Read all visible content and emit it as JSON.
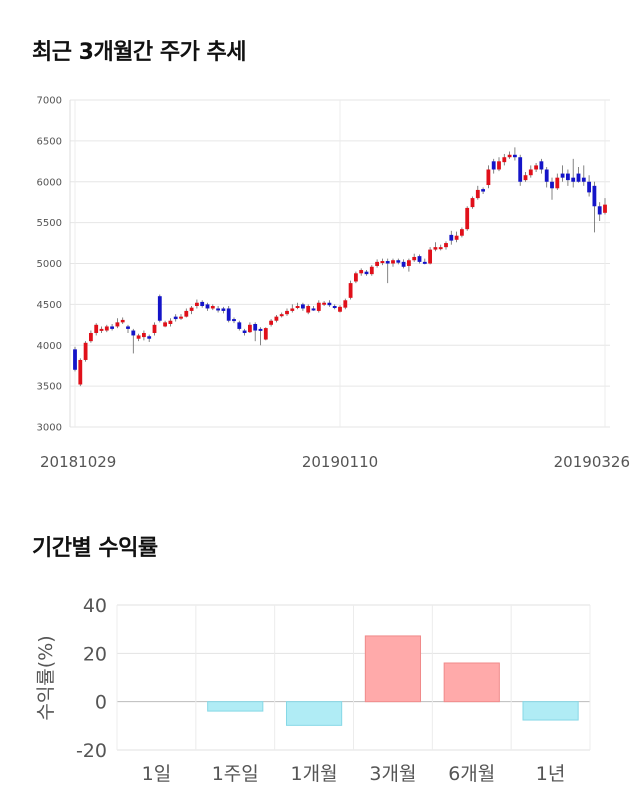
{
  "section1": {
    "title": "최근 3개월간 주가 추세"
  },
  "section2": {
    "title": "기간별 수익률"
  },
  "chart_data": [
    {
      "type": "candlestick",
      "title": "최근 3개월간 주가 추세",
      "ylim": [
        3000,
        7000
      ],
      "yticks": [
        "3000",
        "3500",
        "4000",
        "4500",
        "5000",
        "5500",
        "6000",
        "6500",
        "7000"
      ],
      "x_tick_labels": [
        {
          "label": "20181029",
          "index": 0
        },
        {
          "label": "20190110",
          "index": 50
        },
        {
          "label": "20190326",
          "index": 100
        }
      ],
      "colors": {
        "up": "#e0101a",
        "down": "#1414c8"
      },
      "grid": true,
      "candles": [
        [
          3950,
          3700,
          3980,
          3680
        ],
        [
          3520,
          3820,
          3840,
          3500
        ],
        [
          3820,
          4030,
          4050,
          3800
        ],
        [
          4050,
          4150,
          4180,
          4030
        ],
        [
          4150,
          4250,
          4270,
          4120
        ],
        [
          4180,
          4200,
          4230,
          4150
        ],
        [
          4180,
          4230,
          4250,
          4160
        ],
        [
          4230,
          4200,
          4260,
          4180
        ],
        [
          4230,
          4280,
          4330,
          4210
        ],
        [
          4280,
          4310,
          4340,
          4260
        ],
        [
          4230,
          4200,
          4250,
          4150
        ],
        [
          4180,
          4120,
          4200,
          3900
        ],
        [
          4080,
          4120,
          4140,
          4050
        ],
        [
          4100,
          4150,
          4180,
          4060
        ],
        [
          4110,
          4080,
          4130,
          4040
        ],
        [
          4150,
          4250,
          4280,
          4120
        ],
        [
          4600,
          4300,
          4620,
          4280
        ],
        [
          4230,
          4280,
          4300,
          4220
        ],
        [
          4260,
          4300,
          4330,
          4230
        ],
        [
          4350,
          4320,
          4380,
          4290
        ],
        [
          4330,
          4350,
          4380,
          4310
        ],
        [
          4350,
          4420,
          4450,
          4340
        ],
        [
          4420,
          4460,
          4480,
          4380
        ],
        [
          4480,
          4520,
          4560,
          4450
        ],
        [
          4530,
          4480,
          4550,
          4460
        ],
        [
          4500,
          4450,
          4520,
          4420
        ],
        [
          4450,
          4480,
          4500,
          4430
        ],
        [
          4450,
          4430,
          4480,
          4400
        ],
        [
          4450,
          4420,
          4470,
          4390
        ],
        [
          4450,
          4300,
          4480,
          4280
        ],
        [
          4320,
          4300,
          4340,
          4270
        ],
        [
          4280,
          4200,
          4300,
          4180
        ],
        [
          4180,
          4150,
          4200,
          4120
        ],
        [
          4160,
          4250,
          4280,
          4150
        ],
        [
          4260,
          4180,
          4280,
          4050
        ],
        [
          4200,
          4180,
          4220,
          4000
        ],
        [
          4070,
          4210,
          4220,
          4060
        ],
        [
          4250,
          4300,
          4320,
          4230
        ],
        [
          4300,
          4350,
          4370,
          4280
        ],
        [
          4360,
          4380,
          4400,
          4340
        ],
        [
          4380,
          4420,
          4450,
          4360
        ],
        [
          4420,
          4450,
          4500,
          4400
        ],
        [
          4460,
          4480,
          4520,
          4440
        ],
        [
          4500,
          4450,
          4520,
          4420
        ],
        [
          4400,
          4480,
          4500,
          4380
        ],
        [
          4450,
          4430,
          4480,
          4420
        ],
        [
          4420,
          4520,
          4550,
          4400
        ],
        [
          4500,
          4520,
          4540,
          4480
        ],
        [
          4520,
          4490,
          4550,
          4470
        ],
        [
          4480,
          4470,
          4500,
          4440
        ],
        [
          4410,
          4470,
          4490,
          4400
        ],
        [
          4460,
          4550,
          4570,
          4440
        ],
        [
          4580,
          4760,
          4790,
          4560
        ],
        [
          4780,
          4880,
          4900,
          4760
        ],
        [
          4880,
          4920,
          4940,
          4850
        ],
        [
          4900,
          4870,
          4920,
          4850
        ],
        [
          4870,
          4960,
          4980,
          4850
        ],
        [
          4970,
          5020,
          5050,
          4950
        ],
        [
          5010,
          5030,
          5060,
          4980
        ],
        [
          5030,
          5000,
          5060,
          4760
        ],
        [
          5000,
          5040,
          5060,
          4960
        ],
        [
          5040,
          5010,
          5060,
          4990
        ],
        [
          5020,
          4960,
          5050,
          4940
        ],
        [
          4970,
          5040,
          5060,
          4900
        ],
        [
          5040,
          5080,
          5120,
          5020
        ],
        [
          5090,
          5020,
          5110,
          5000
        ],
        [
          5020,
          5010,
          5060,
          4990
        ],
        [
          5000,
          5170,
          5200,
          4990
        ],
        [
          5170,
          5200,
          5260,
          5150
        ],
        [
          5180,
          5200,
          5230,
          5160
        ],
        [
          5200,
          5250,
          5270,
          5170
        ],
        [
          5350,
          5280,
          5400,
          5230
        ],
        [
          5290,
          5340,
          5390,
          5260
        ],
        [
          5340,
          5420,
          5440,
          5320
        ],
        [
          5420,
          5680,
          5700,
          5400
        ],
        [
          5690,
          5800,
          5820,
          5670
        ],
        [
          5800,
          5900,
          5950,
          5780
        ],
        [
          5910,
          5880,
          5930,
          5850
        ],
        [
          5960,
          6150,
          6200,
          5920
        ],
        [
          6250,
          6150,
          6280,
          6100
        ],
        [
          6150,
          6250,
          6300,
          6130
        ],
        [
          6240,
          6300,
          6340,
          6200
        ],
        [
          6300,
          6330,
          6370,
          6280
        ],
        [
          6330,
          6300,
          6420,
          6260
        ],
        [
          6300,
          6000,
          6330,
          5950
        ],
        [
          6020,
          6080,
          6120,
          6000
        ],
        [
          6080,
          6150,
          6200,
          6050
        ],
        [
          6150,
          6200,
          6230,
          6120
        ],
        [
          6250,
          6150,
          6280,
          6100
        ],
        [
          6150,
          6000,
          6180,
          5930
        ],
        [
          6000,
          5920,
          6050,
          5780
        ],
        [
          5920,
          6050,
          6100,
          5900
        ],
        [
          6100,
          6050,
          6200,
          6000
        ],
        [
          6100,
          6020,
          6150,
          5950
        ],
        [
          6050,
          6000,
          6280,
          5930
        ],
        [
          6100,
          6000,
          6180,
          5990
        ],
        [
          6050,
          6000,
          6200,
          5950
        ],
        [
          6000,
          5870,
          6080,
          5820
        ],
        [
          5950,
          5700,
          6000,
          5380
        ],
        [
          5700,
          5600,
          5750,
          5520
        ],
        [
          5620,
          5720,
          5800,
          5600
        ]
      ]
    },
    {
      "type": "bar",
      "title": "기간별 수익률",
      "ylabel": "수익률(%)",
      "ylim": [
        -20,
        40
      ],
      "yticks": [
        "40",
        "20",
        "0",
        "-20"
      ],
      "categories": [
        "1일",
        "1주일",
        "1개월",
        "3개월",
        "6개월",
        "1년"
      ],
      "values": [
        0,
        -3.9,
        -9.8,
        27.2,
        16.0,
        -7.6
      ],
      "colors": {
        "positive": "#ffaaaa",
        "negative": "#b0ecf5"
      },
      "grid": true
    }
  ]
}
